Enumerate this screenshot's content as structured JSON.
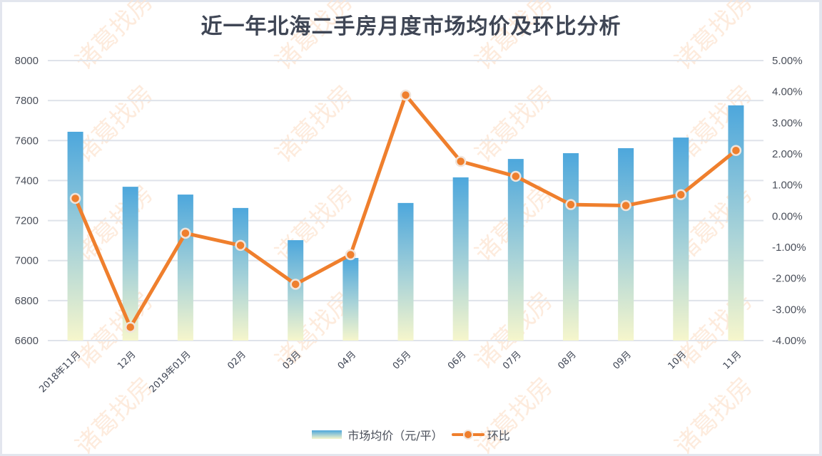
{
  "title": "近一年北海二手房月度市场均价及环比分析",
  "watermark": "诸葛找房",
  "legend": {
    "bar_label": "市场均价（元/平）",
    "line_label": "环比"
  },
  "colors": {
    "bar_top": "#4da7dc",
    "bar_bottom": "#f5f5cc",
    "line": "#ef7f2d",
    "grid": "#dfe3ea",
    "text": "#3f4655"
  },
  "chart_data": {
    "type": "bar+line",
    "title": "近一年北海二手房月度市场均价及环比分析",
    "categories": [
      "2018年11月",
      "12月",
      "2019年01月",
      "02月",
      "03月",
      "04月",
      "05月",
      "06月",
      "07月",
      "08月",
      "09月",
      "10月",
      "11月"
    ],
    "series": [
      {
        "name": "市场均价（元/平）",
        "type": "bar",
        "axis": "left",
        "values": [
          7644,
          7369,
          7330,
          7263,
          7102,
          7013,
          7288,
          7416,
          7508,
          7537,
          7562,
          7615,
          7776
        ]
      },
      {
        "name": "环比",
        "type": "line",
        "axis": "right",
        "unit": "%",
        "values": [
          0.57,
          -3.57,
          -0.55,
          -0.94,
          -2.19,
          -1.24,
          3.89,
          1.76,
          1.28,
          0.37,
          0.34,
          0.69,
          2.11
        ]
      }
    ],
    "left_axis": {
      "ylim": [
        6600,
        8000
      ],
      "ticks": [
        "8000",
        "7800",
        "7600",
        "7400",
        "7200",
        "7000",
        "6800",
        "6600"
      ]
    },
    "right_axis": {
      "ylim": [
        -4,
        5
      ],
      "ticks": [
        "5.00%",
        "4.00%",
        "3.00%",
        "2.00%",
        "1.00%",
        "0.00%",
        "-1.00%",
        "-2.00%",
        "-3.00%",
        "-4.00%"
      ]
    },
    "grid": true,
    "legend_position": "bottom"
  }
}
